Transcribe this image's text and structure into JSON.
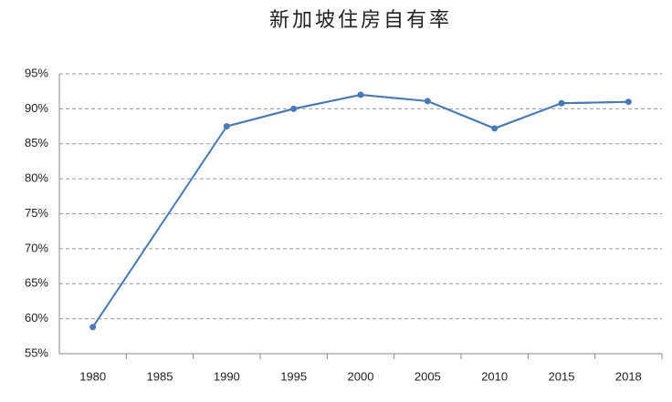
{
  "chart_data": {
    "type": "line",
    "title": "新加坡住房自有率",
    "categories": [
      "1980",
      "1985",
      "1990",
      "1995",
      "2000",
      "2005",
      "2010",
      "2015",
      "2018"
    ],
    "series": [
      {
        "name": "住房自有率",
        "color": "#4a7ab5",
        "values": [
          58.8,
          null,
          87.5,
          90.0,
          92.0,
          91.1,
          87.2,
          90.8,
          91.0
        ]
      }
    ],
    "ylim": [
      55,
      95
    ],
    "yticks": [
      {
        "value": 55,
        "label": "55%"
      },
      {
        "value": 60,
        "label": "60%"
      },
      {
        "value": 65,
        "label": "65%"
      },
      {
        "value": 70,
        "label": "70%"
      },
      {
        "value": 75,
        "label": "75%"
      },
      {
        "value": 80,
        "label": "80%"
      },
      {
        "value": 85,
        "label": "85%"
      },
      {
        "value": 90,
        "label": "90%"
      },
      {
        "value": 95,
        "label": "95%"
      }
    ],
    "grid": true,
    "connect_gaps": true
  }
}
